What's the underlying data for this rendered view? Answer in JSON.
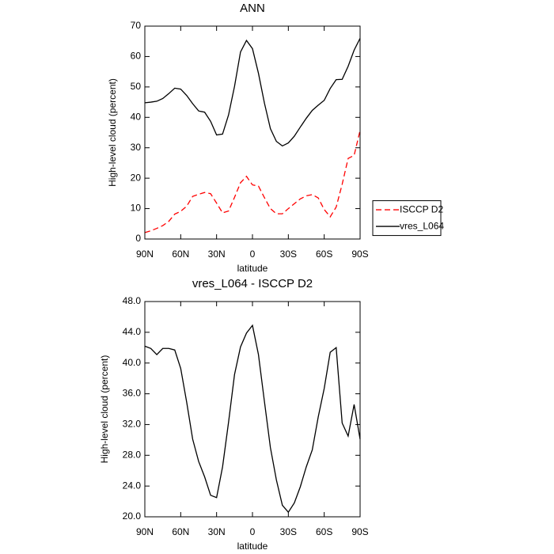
{
  "chart_data": [
    {
      "type": "line",
      "title": "ANN",
      "xlabel": "latitude",
      "ylabel": "High-level cloud (percent)",
      "x": [
        90,
        85,
        80,
        75,
        70,
        65,
        60,
        55,
        50,
        45,
        40,
        35,
        30,
        25,
        20,
        15,
        10,
        5,
        0,
        -5,
        -10,
        -15,
        -20,
        -25,
        -30,
        -35,
        -40,
        -45,
        -50,
        -55,
        -60,
        -65,
        -70,
        -75,
        -80,
        -85,
        -90
      ],
      "xlim": [
        90,
        -90
      ],
      "xticks": [
        {
          "value": 90,
          "label": "90N"
        },
        {
          "value": 60,
          "label": "60N"
        },
        {
          "value": 30,
          "label": "30N"
        },
        0,
        {
          "value": -30,
          "label": "30S"
        },
        {
          "value": -60,
          "label": "60S"
        },
        {
          "value": -90,
          "label": "90S"
        }
      ],
      "ylim": [
        0,
        70
      ],
      "yticks": [
        0,
        10,
        20,
        30,
        40,
        50,
        60,
        70
      ],
      "legend": "right",
      "series": [
        {
          "name": "ISCCP D2",
          "color": "#ff0000",
          "dashed": true,
          "values": [
            2.1,
            2.7,
            3.5,
            4.4,
            5.8,
            8.2,
            9.1,
            10.8,
            14,
            14.7,
            15.3,
            14.9,
            11.8,
            8.6,
            9.2,
            13.7,
            18.5,
            20.6,
            17.8,
            17.4,
            13.6,
            10,
            8.3,
            8.3,
            10,
            11.6,
            13.2,
            14.2,
            14.6,
            13.5,
            9.7,
            7.3,
            10.5,
            18,
            26.5,
            27.5,
            35.7
          ]
        },
        {
          "name": "vres_L064",
          "color": "#000000",
          "dashed": false,
          "values": [
            44.8,
            45,
            45.3,
            46.2,
            47.8,
            49.6,
            49.3,
            47.2,
            44.5,
            42.1,
            41.7,
            38.7,
            34.2,
            34.5,
            40.8,
            50.2,
            61.5,
            65.3,
            62.6,
            54.5,
            44.7,
            36.3,
            32.1,
            30.6,
            31.6,
            33.8,
            36.8,
            39.7,
            42.3,
            44,
            45.6,
            49.5,
            52.4,
            52.5,
            56.8,
            62.1,
            66
          ]
        }
      ]
    },
    {
      "type": "line",
      "title": "vres_L064 - ISCCP D2",
      "xlabel": "latitude",
      "ylabel": "High-level cloud (percent)",
      "x": [
        90,
        85,
        80,
        75,
        70,
        65,
        60,
        55,
        50,
        45,
        40,
        35,
        30,
        25,
        20,
        15,
        10,
        5,
        0,
        -5,
        -10,
        -15,
        -20,
        -25,
        -30,
        -35,
        -40,
        -45,
        -50,
        -55,
        -60,
        -65,
        -70,
        -75,
        -80,
        -85,
        -90
      ],
      "xlim": [
        90,
        -90
      ],
      "xticks": [
        {
          "value": 90,
          "label": "90N"
        },
        {
          "value": 60,
          "label": "60N"
        },
        {
          "value": 30,
          "label": "30N"
        },
        0,
        {
          "value": -30,
          "label": "30S"
        },
        {
          "value": -60,
          "label": "60S"
        },
        {
          "value": -90,
          "label": "90S"
        }
      ],
      "ylim": [
        20,
        48
      ],
      "yticks": [
        {
          "value": 20,
          "label": "20.0"
        },
        {
          "value": 24,
          "label": "24.0"
        },
        {
          "value": 28,
          "label": "28.0"
        },
        {
          "value": 32,
          "label": "32.0"
        },
        {
          "value": 36,
          "label": "36.0"
        },
        {
          "value": 40,
          "label": "40.0"
        },
        {
          "value": 44,
          "label": "44.0"
        },
        {
          "value": 48,
          "label": "48.0"
        }
      ],
      "color": "#000000",
      "values": [
        42.2,
        41.9,
        41.1,
        41.9,
        41.9,
        41.7,
        39.3,
        34.9,
        30.1,
        27.2,
        25.2,
        22.8,
        22.5,
        26.5,
        32.3,
        38.5,
        42.1,
        43.9,
        44.9,
        41.1,
        35,
        29,
        24.8,
        21.5,
        20.6,
        21.8,
        23.9,
        26.5,
        28.7,
        33,
        36.7,
        41.4,
        42,
        32.2,
        30.5,
        34.6,
        30.1
      ]
    }
  ]
}
